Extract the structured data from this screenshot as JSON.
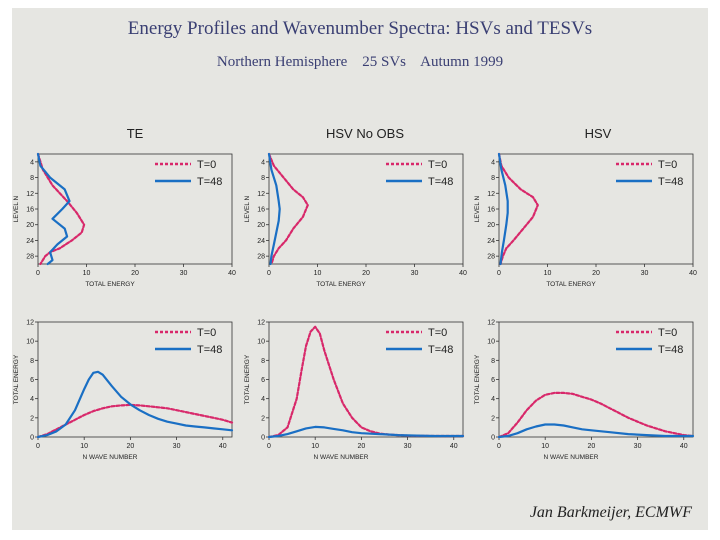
{
  "header": {
    "title": "Energy Profiles and Wavenumber Spectra:  HSVs and TESVs",
    "subtitle": "Northern Hemisphere    25 SVs    Autumn 1999"
  },
  "footer": {
    "author": "Jan Barkmeijer, ECMWF"
  },
  "colors": {
    "t0": "#d8286a",
    "t48": "#1a6fc4",
    "background": "#e6e6e2"
  },
  "chart_data": [
    {
      "type": "line",
      "title": "TE",
      "xlabel": "TOTAL ENERGY",
      "ylabel": "LEVEL N",
      "xlim": [
        0,
        40
      ],
      "ylim": [
        30,
        2
      ],
      "y_inverted": true,
      "xticks": [
        0,
        10,
        20,
        30,
        40
      ],
      "yticks": [
        4,
        8,
        12,
        16,
        20,
        24,
        28
      ],
      "series": [
        {
          "name": "T=0",
          "x": [
            0,
            1,
            3,
            6,
            8,
            9.5,
            9,
            7,
            4.5,
            2.5,
            1.5,
            0.5
          ],
          "y": [
            2,
            6,
            10,
            14,
            17,
            20,
            22,
            24,
            26,
            27,
            28,
            30
          ]
        },
        {
          "name": "T=48",
          "x": [
            0,
            0.5,
            2.5,
            5.5,
            6.5,
            5,
            3,
            5.5,
            6,
            4,
            2.5,
            3,
            2
          ],
          "y": [
            2,
            5,
            8,
            11,
            14,
            16,
            18.5,
            21,
            23,
            25,
            27,
            29,
            30
          ]
        }
      ]
    },
    {
      "type": "line",
      "title": "HSV No OBS",
      "xlabel": "TOTAL ENERGY",
      "ylabel": "LEVEL N",
      "xlim": [
        0,
        40
      ],
      "ylim": [
        30,
        2
      ],
      "y_inverted": true,
      "xticks": [
        0,
        10,
        20,
        30,
        40
      ],
      "yticks": [
        4,
        8,
        12,
        16,
        20,
        24,
        28
      ],
      "series": [
        {
          "name": "T=0",
          "x": [
            0,
            1,
            3,
            5,
            7,
            8,
            7,
            5,
            3.5,
            2,
            1,
            0.5
          ],
          "y": [
            2,
            5,
            8,
            11,
            13,
            15,
            18,
            21,
            24,
            26,
            28,
            30
          ]
        },
        {
          "name": "T=48",
          "x": [
            0,
            0.5,
            1.5,
            2,
            2.2,
            2,
            1.5,
            1,
            0.5,
            0.3
          ],
          "y": [
            2,
            6,
            10,
            14,
            16,
            19,
            22,
            25,
            28,
            30
          ]
        }
      ]
    },
    {
      "type": "line",
      "title": "HSV",
      "xlabel": "TOTAL ENERGY",
      "ylabel": "LEVEL N",
      "xlim": [
        0,
        40
      ],
      "ylim": [
        30,
        2
      ],
      "y_inverted": true,
      "xticks": [
        0,
        10,
        20,
        30,
        40
      ],
      "yticks": [
        4,
        8,
        12,
        16,
        20,
        24,
        28
      ],
      "series": [
        {
          "name": "T=0",
          "x": [
            0,
            0.5,
            2,
            4.5,
            7,
            8,
            7,
            5,
            3,
            1.5,
            0.8,
            0.3
          ],
          "y": [
            2,
            5,
            8,
            11,
            13,
            15,
            18,
            21,
            24,
            26,
            28,
            30
          ]
        },
        {
          "name": "T=48",
          "x": [
            0,
            0.5,
            1.3,
            1.8,
            1.8,
            1.5,
            1,
            0.6,
            0.3
          ],
          "y": [
            2,
            6,
            10,
            14,
            17,
            20,
            24,
            27,
            30
          ]
        }
      ]
    },
    {
      "type": "line",
      "title": "",
      "xlabel": "N WAVE NUMBER",
      "ylabel": "TOTAL ENERGY",
      "xlim": [
        0,
        42
      ],
      "ylim": [
        0,
        12
      ],
      "xticks": [
        0,
        10,
        20,
        30,
        40
      ],
      "yticks": [
        0,
        2,
        4,
        6,
        8,
        10,
        12
      ],
      "series": [
        {
          "name": "T=0",
          "x": [
            0,
            2,
            4,
            6,
            8,
            10,
            12,
            14,
            16,
            18,
            20,
            22,
            24,
            26,
            28,
            30,
            32,
            34,
            36,
            38,
            40,
            42
          ],
          "y": [
            0,
            0.3,
            0.8,
            1.3,
            1.8,
            2.3,
            2.7,
            3.0,
            3.2,
            3.3,
            3.35,
            3.3,
            3.2,
            3.1,
            3.0,
            2.8,
            2.6,
            2.4,
            2.2,
            2.0,
            1.8,
            1.5
          ]
        },
        {
          "name": "T=48",
          "x": [
            0,
            2,
            4,
            6,
            8,
            10,
            11,
            12,
            13,
            14,
            16,
            18,
            20,
            22,
            24,
            26,
            28,
            30,
            32,
            34,
            36,
            38,
            40,
            42
          ],
          "y": [
            0,
            0.2,
            0.6,
            1.3,
            2.8,
            5.0,
            6.0,
            6.7,
            6.8,
            6.5,
            5.3,
            4.2,
            3.4,
            2.8,
            2.3,
            1.9,
            1.6,
            1.4,
            1.2,
            1.1,
            1.0,
            0.9,
            0.8,
            0.7
          ]
        }
      ]
    },
    {
      "type": "line",
      "title": "",
      "xlabel": "N WAVE NUMBER",
      "ylabel": "TOTAL ENERGY",
      "xlim": [
        0,
        42
      ],
      "ylim": [
        0,
        12
      ],
      "xticks": [
        0,
        10,
        20,
        30,
        40
      ],
      "yticks": [
        0,
        2,
        4,
        6,
        8,
        10,
        12
      ],
      "series": [
        {
          "name": "T=0",
          "x": [
            0,
            2,
            4,
            6,
            7,
            8,
            9,
            10,
            11,
            12,
            14,
            16,
            18,
            20,
            22,
            24,
            26,
            28,
            30,
            34,
            38,
            42
          ],
          "y": [
            0,
            0.2,
            1.0,
            4.0,
            6.8,
            9.5,
            11.0,
            11.5,
            10.8,
            9.0,
            6.0,
            3.5,
            2.0,
            1.0,
            0.6,
            0.35,
            0.25,
            0.2,
            0.15,
            0.12,
            0.1,
            0.1
          ]
        },
        {
          "name": "T=48",
          "x": [
            0,
            2,
            4,
            6,
            8,
            10,
            12,
            14,
            16,
            18,
            20,
            24,
            28,
            32,
            36,
            42
          ],
          "y": [
            0,
            0.1,
            0.3,
            0.6,
            0.9,
            1.05,
            1.0,
            0.85,
            0.7,
            0.5,
            0.4,
            0.3,
            0.2,
            0.15,
            0.1,
            0.1
          ]
        }
      ]
    },
    {
      "type": "line",
      "title": "",
      "xlabel": "N WAVE NUMBER",
      "ylabel": "TOTAL ENERGY",
      "xlim": [
        0,
        42
      ],
      "ylim": [
        0,
        12
      ],
      "xticks": [
        0,
        10,
        20,
        30,
        40
      ],
      "yticks": [
        0,
        2,
        4,
        6,
        8,
        10,
        12
      ],
      "series": [
        {
          "name": "T=0",
          "x": [
            0,
            2,
            4,
            6,
            8,
            10,
            12,
            14,
            16,
            18,
            20,
            22,
            24,
            26,
            28,
            30,
            32,
            34,
            36,
            38,
            40,
            42
          ],
          "y": [
            0,
            0.4,
            1.5,
            2.8,
            3.8,
            4.4,
            4.6,
            4.6,
            4.5,
            4.2,
            3.9,
            3.5,
            3.0,
            2.5,
            2.0,
            1.6,
            1.2,
            0.9,
            0.6,
            0.4,
            0.2,
            0.1
          ]
        },
        {
          "name": "T=48",
          "x": [
            0,
            2,
            4,
            6,
            8,
            10,
            12,
            14,
            16,
            18,
            20,
            24,
            28,
            32,
            36,
            42
          ],
          "y": [
            0,
            0.1,
            0.4,
            0.8,
            1.1,
            1.3,
            1.3,
            1.2,
            1.0,
            0.8,
            0.7,
            0.5,
            0.3,
            0.2,
            0.1,
            0.1
          ]
        }
      ]
    }
  ]
}
